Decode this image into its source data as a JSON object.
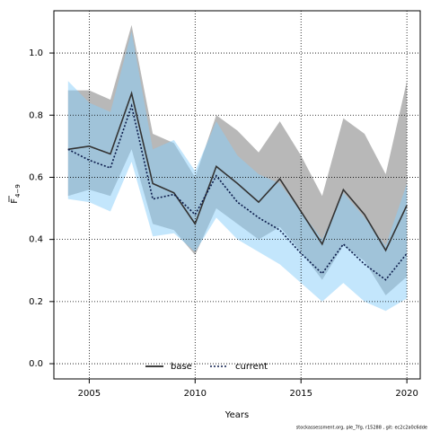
{
  "chart_data": {
    "type": "line",
    "xlabel": "Years",
    "ylabel": {
      "text": "F",
      "subscript": "4−9"
    },
    "footer": "stockassessment.org, ple_7fg, r15288 , git: ec2c2a0c6dde",
    "x": [
      2004,
      2005,
      2006,
      2007,
      2008,
      2009,
      2010,
      2011,
      2012,
      2013,
      2014,
      2015,
      2016,
      2017,
      2018,
      2019,
      2020
    ],
    "series": [
      {
        "name": "base",
        "color": "#333333",
        "band_color": "#a0a0a0",
        "dash": false,
        "values": [
          0.69,
          0.7,
          0.675,
          0.87,
          0.58,
          0.55,
          0.45,
          0.635,
          0.58,
          0.52,
          0.595,
          0.49,
          0.385,
          0.56,
          0.48,
          0.365,
          0.51
        ],
        "upper": [
          0.88,
          0.88,
          0.85,
          1.09,
          0.74,
          0.71,
          0.6,
          0.8,
          0.75,
          0.68,
          0.78,
          0.67,
          0.54,
          0.79,
          0.74,
          0.61,
          0.91
        ],
        "lower": [
          0.54,
          0.56,
          0.54,
          0.69,
          0.45,
          0.43,
          0.35,
          0.5,
          0.45,
          0.4,
          0.44,
          0.36,
          0.27,
          0.38,
          0.33,
          0.22,
          0.28
        ]
      },
      {
        "name": "current",
        "color": "#0a1a4a",
        "band_color": "#87cefa",
        "dash": true,
        "values": [
          0.69,
          0.655,
          0.63,
          0.83,
          0.53,
          0.545,
          0.48,
          0.605,
          0.52,
          0.47,
          0.43,
          0.355,
          0.29,
          0.385,
          0.32,
          0.27,
          0.355
        ],
        "upper": [
          0.91,
          0.84,
          0.81,
          1.07,
          0.69,
          0.72,
          0.62,
          0.78,
          0.67,
          0.61,
          0.58,
          0.49,
          0.4,
          0.55,
          0.47,
          0.38,
          0.58
        ],
        "lower": [
          0.53,
          0.52,
          0.49,
          0.65,
          0.41,
          0.42,
          0.36,
          0.47,
          0.4,
          0.36,
          0.32,
          0.26,
          0.2,
          0.26,
          0.2,
          0.17,
          0.21
        ]
      }
    ],
    "xlim": [
      2003.33,
      2020.63
    ],
    "ylim": [
      -0.049,
      1.136
    ],
    "xticks": [
      2005,
      2010,
      2015,
      2020
    ],
    "yticks": [
      {
        "value": 0,
        "label": "0.0"
      },
      0.2,
      0.4,
      0.6,
      0.8,
      {
        "value": 1,
        "label": "1.0"
      }
    ],
    "grid": true,
    "legend": "bottom"
  }
}
